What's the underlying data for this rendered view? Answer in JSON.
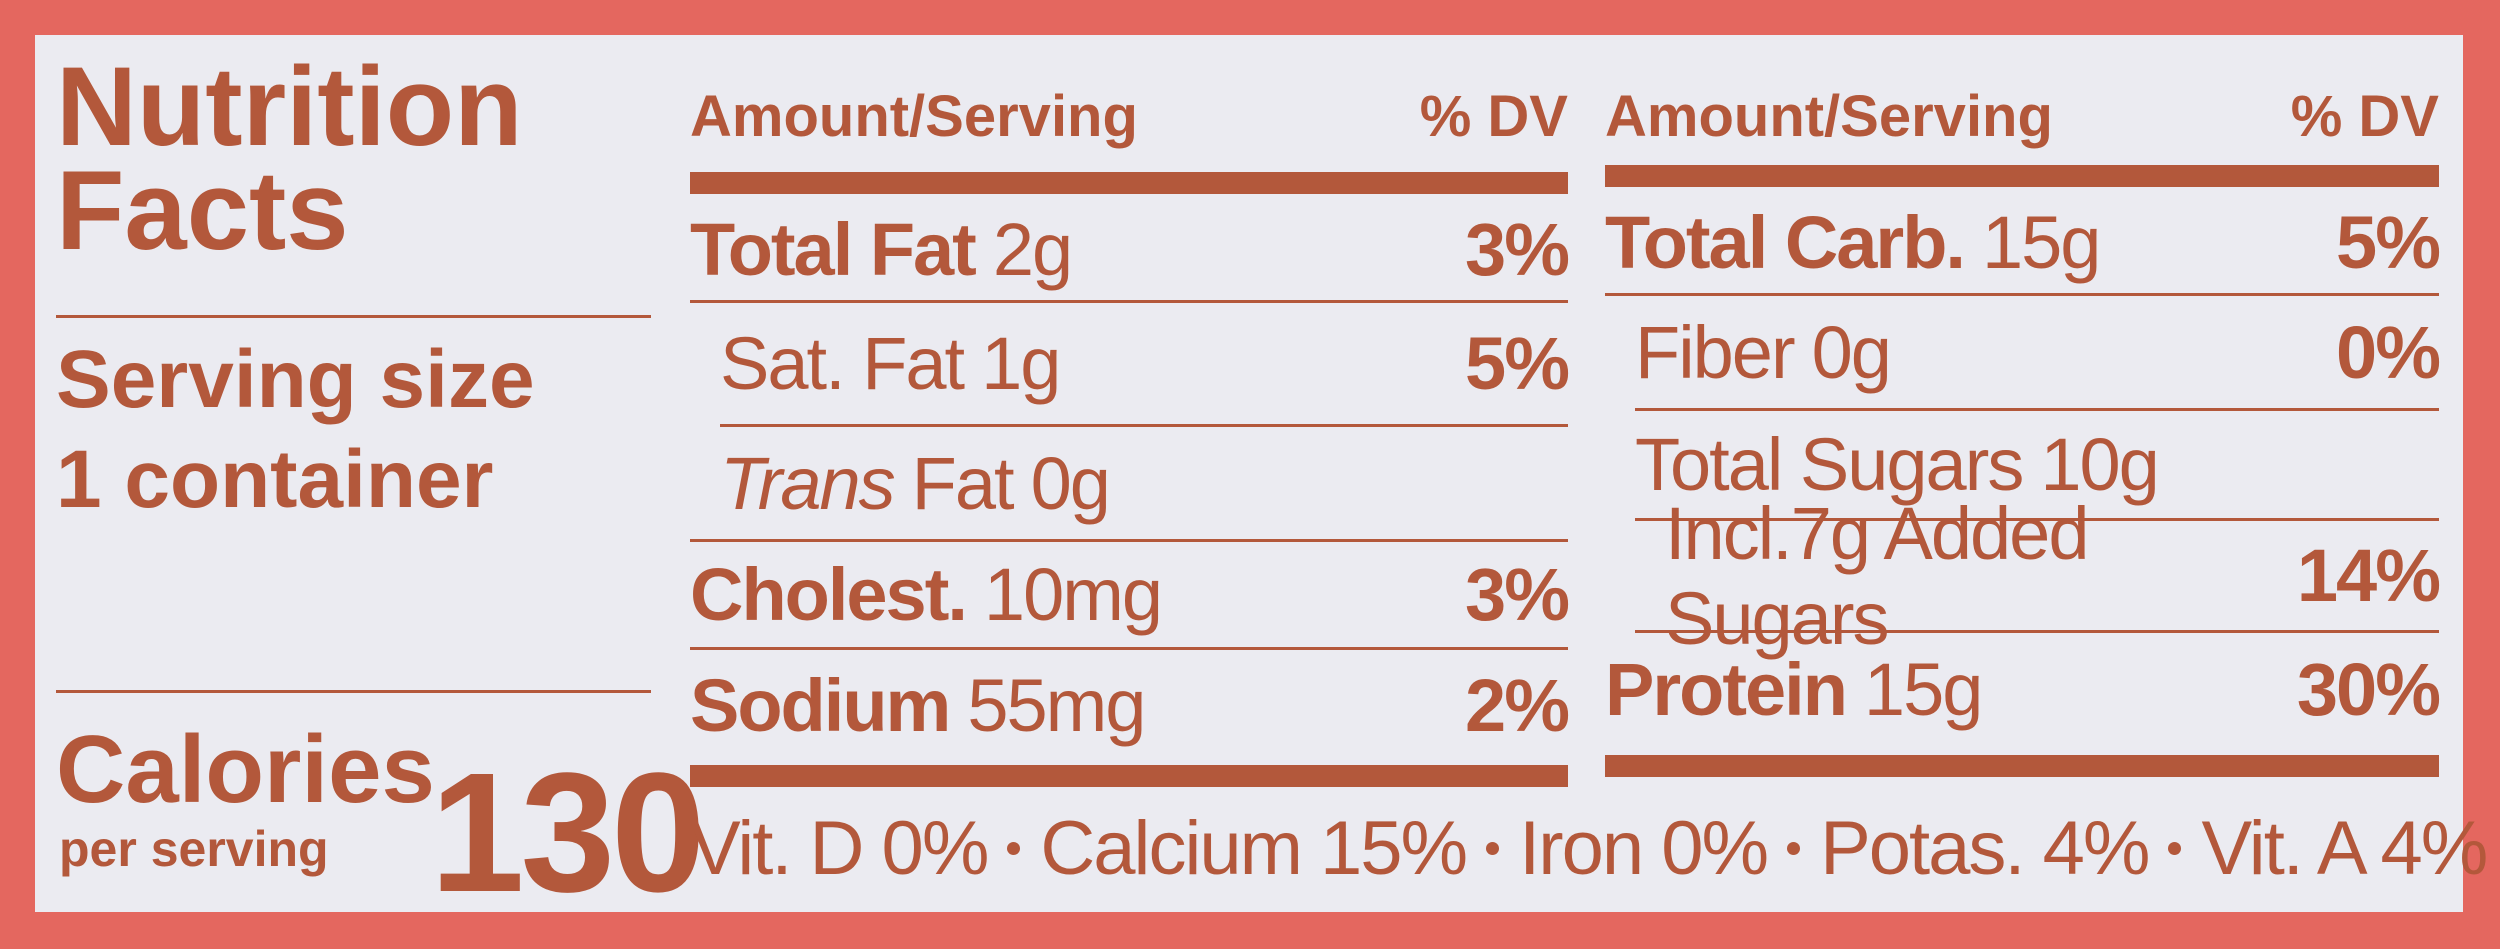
{
  "header": {
    "title": "Nutrition Facts"
  },
  "serving": {
    "label": "Serving size",
    "value": "1 container"
  },
  "calories": {
    "label": "Calories",
    "sublabel": "per serving",
    "value": 130
  },
  "left_table": {
    "col_amount": "Amount/Serving",
    "col_dv": "% DV",
    "rows": [
      {
        "name": "Total Fat",
        "amount": "2g",
        "dv": "3%"
      },
      {
        "name": "Sat. Fat",
        "amount": "1g",
        "dv": "5%"
      },
      {
        "name_italic": "Trans",
        "name": "Fat",
        "amount": "0g"
      },
      {
        "name": "Cholest.",
        "amount": "10mg",
        "dv": "3%"
      },
      {
        "name": "Sodium",
        "amount": "55mg",
        "dv": "2%"
      }
    ]
  },
  "right_table": {
    "col_amount": "Amount/Serving",
    "col_dv": "% DV",
    "rows": [
      {
        "name": "Total Carb.",
        "amount": "15g",
        "dv": "5%"
      },
      {
        "name": "Fiber",
        "amount": "0g",
        "dv": "0%"
      },
      {
        "name": "Total Sugars",
        "amount": "10g"
      },
      {
        "name": "Incl.7g Added Sugars",
        "dv": "14%"
      },
      {
        "name": "Protein",
        "amount": "15g",
        "dv": "30%"
      }
    ]
  },
  "footer": {
    "items": [
      "Vit. D 0%",
      "Calcium 15%",
      "Iron 0%",
      "Potas. 4%",
      "Vit. A 4%"
    ]
  }
}
